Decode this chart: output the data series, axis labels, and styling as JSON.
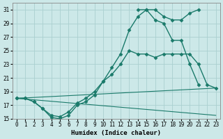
{
  "xlabel": "Humidex (Indice chaleur)",
  "background_color": "#cce8e8",
  "grid_color": "#aad0d0",
  "line_color": "#1a7a6a",
  "xlim": [
    -0.5,
    23.5
  ],
  "ylim": [
    15,
    32
  ],
  "yticks": [
    15,
    17,
    19,
    21,
    23,
    25,
    27,
    29,
    31
  ],
  "xticks": [
    0,
    1,
    2,
    3,
    4,
    5,
    6,
    7,
    8,
    9,
    10,
    11,
    12,
    13,
    14,
    15,
    16,
    17,
    18,
    19,
    20,
    21,
    22,
    23
  ],
  "series": [
    {
      "x": [
        0,
        1,
        2,
        3,
        4,
        5,
        6,
        7,
        8,
        9,
        10,
        11,
        12,
        13,
        14,
        15,
        16,
        17,
        18,
        19,
        20,
        21
      ],
      "y": [
        18,
        18,
        17.5,
        16.5,
        15.2,
        15.0,
        15.5,
        17.0,
        17.5,
        18.5,
        20.5,
        22.5,
        24.5,
        28.0,
        30.0,
        31.0,
        31.0,
        30.0,
        29.5,
        29.5,
        30.5,
        31.0
      ],
      "marker": "D",
      "markersize": 2.5,
      "linewidth": 1.0,
      "has_marker": true
    },
    {
      "x": [
        14,
        15,
        16,
        17,
        18,
        19,
        20,
        21
      ],
      "y": [
        31.0,
        31.0,
        29.5,
        29.0,
        26.5,
        26.5,
        23.0,
        20.0
      ],
      "marker": "D",
      "markersize": 2.5,
      "linewidth": 1.0,
      "has_marker": true
    },
    {
      "x": [
        0,
        1,
        2,
        3,
        4,
        5,
        6,
        7,
        8,
        9,
        10,
        11,
        12,
        13,
        14,
        15,
        16,
        17,
        18,
        19,
        20,
        21,
        22,
        23
      ],
      "y": [
        18,
        18,
        17.5,
        16.5,
        15.5,
        15.3,
        16.0,
        17.3,
        18.0,
        19.0,
        20.5,
        21.5,
        23.0,
        25.0,
        24.5,
        24.5,
        24.0,
        24.5,
        24.5,
        24.5,
        24.5,
        23.0,
        20.0,
        19.5
      ],
      "marker": "D",
      "markersize": 2.5,
      "linewidth": 1.0,
      "has_marker": true
    },
    {
      "x": [
        0,
        23
      ],
      "y": [
        18.0,
        19.5
      ],
      "marker": null,
      "markersize": 0,
      "linewidth": 0.8,
      "has_marker": false
    },
    {
      "x": [
        0,
        23
      ],
      "y": [
        18.0,
        15.5
      ],
      "marker": null,
      "markersize": 0,
      "linewidth": 0.8,
      "has_marker": false
    }
  ]
}
